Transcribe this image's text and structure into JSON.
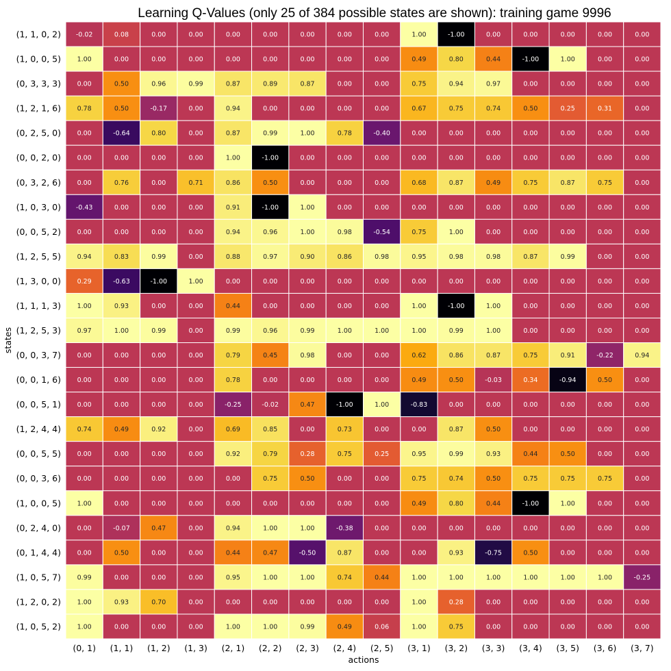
{
  "chart_data": {
    "type": "heatmap",
    "title": "Learning Q-Values (only 25 of 384 possible states are shown): training game 9996",
    "xlabel": "actions",
    "ylabel": "states",
    "colormap": "inferno",
    "vmin": -1.0,
    "vmax": 1.0,
    "value_format": "2 decimals",
    "grid": "white cell separators",
    "x_categories": [
      "(0, 1)",
      "(1, 1)",
      "(1, 2)",
      "(1, 3)",
      "(2, 1)",
      "(2, 2)",
      "(2, 3)",
      "(2, 4)",
      "(2, 5)",
      "(3, 1)",
      "(3, 2)",
      "(3, 3)",
      "(3, 4)",
      "(3, 5)",
      "(3, 6)",
      "(3, 7)"
    ],
    "y_categories": [
      "(1, 1, 0, 2)",
      "(1, 0, 0, 5)",
      "(0, 3, 3, 3)",
      "(1, 2, 1, 6)",
      "(0, 2, 5, 0)",
      "(0, 0, 2, 0)",
      "(0, 3, 2, 6)",
      "(1, 0, 3, 0)",
      "(0, 0, 5, 2)",
      "(1, 2, 5, 5)",
      "(1, 3, 0, 0)",
      "(1, 1, 1, 3)",
      "(1, 2, 5, 3)",
      "(0, 0, 3, 7)",
      "(0, 0, 1, 6)",
      "(0, 0, 5, 1)",
      "(1, 2, 4, 4)",
      "(0, 0, 5, 5)",
      "(0, 0, 3, 6)",
      "(1, 0, 0, 5)",
      "(0, 2, 4, 0)",
      "(0, 1, 4, 4)",
      "(1, 0, 5, 7)",
      "(1, 2, 0, 2)",
      "(1, 0, 5, 2)"
    ],
    "values": [
      [
        -0.02,
        0.08,
        0.0,
        0.0,
        0.0,
        0.0,
        0.0,
        0.0,
        0.0,
        1.0,
        -1.0,
        0.0,
        0.0,
        0.0,
        0.0,
        0.0
      ],
      [
        1.0,
        0.0,
        0.0,
        0.0,
        0.0,
        0.0,
        0.0,
        0.0,
        0.0,
        0.49,
        0.8,
        0.44,
        -1.0,
        1.0,
        0.0,
        0.0
      ],
      [
        0.0,
        0.5,
        0.96,
        0.99,
        0.87,
        0.89,
        0.87,
        0.0,
        0.0,
        0.75,
        0.94,
        0.97,
        0.0,
        0.0,
        0.0,
        0.0
      ],
      [
        0.78,
        0.5,
        -0.17,
        0.0,
        0.94,
        0.0,
        0.0,
        0.0,
        0.0,
        0.67,
        0.75,
        0.74,
        0.5,
        0.25,
        0.31,
        0.0
      ],
      [
        0.0,
        -0.64,
        0.8,
        0.0,
        0.87,
        0.99,
        1.0,
        0.78,
        -0.4,
        0.0,
        0.0,
        0.0,
        0.0,
        0.0,
        0.0,
        0.0
      ],
      [
        0.0,
        0.0,
        0.0,
        0.0,
        1.0,
        -1.0,
        0.0,
        0.0,
        0.0,
        0.0,
        0.0,
        0.0,
        0.0,
        0.0,
        0.0,
        0.0
      ],
      [
        0.0,
        0.76,
        0.0,
        0.71,
        0.86,
        0.5,
        0.0,
        0.0,
        0.0,
        0.68,
        0.87,
        0.49,
        0.75,
        0.87,
        0.75,
        0.0
      ],
      [
        -0.43,
        0.0,
        0.0,
        0.0,
        0.91,
        -1.0,
        1.0,
        0.0,
        0.0,
        0.0,
        0.0,
        0.0,
        0.0,
        0.0,
        0.0,
        0.0
      ],
      [
        0.0,
        0.0,
        0.0,
        0.0,
        0.94,
        0.96,
        1.0,
        0.98,
        -0.54,
        0.75,
        1.0,
        0.0,
        0.0,
        0.0,
        0.0,
        0.0
      ],
      [
        0.94,
        0.83,
        0.99,
        0.0,
        0.88,
        0.97,
        0.9,
        0.86,
        0.98,
        0.95,
        0.98,
        0.98,
        0.87,
        0.99,
        0.0,
        0.0
      ],
      [
        0.29,
        -0.63,
        -1.0,
        1.0,
        0.0,
        0.0,
        0.0,
        0.0,
        0.0,
        0.0,
        0.0,
        0.0,
        0.0,
        0.0,
        0.0,
        0.0
      ],
      [
        1.0,
        0.93,
        0.0,
        0.0,
        0.44,
        0.0,
        0.0,
        0.0,
        0.0,
        1.0,
        -1.0,
        1.0,
        0.0,
        0.0,
        0.0,
        0.0
      ],
      [
        0.97,
        1.0,
        0.99,
        0.0,
        0.99,
        0.96,
        0.99,
        1.0,
        1.0,
        1.0,
        0.99,
        1.0,
        0.0,
        0.0,
        0.0,
        0.0
      ],
      [
        0.0,
        0.0,
        0.0,
        0.0,
        0.79,
        0.45,
        0.98,
        0.0,
        0.0,
        0.62,
        0.86,
        0.87,
        0.75,
        0.91,
        -0.22,
        0.94
      ],
      [
        0.0,
        0.0,
        0.0,
        0.0,
        0.78,
        0.0,
        0.0,
        0.0,
        0.0,
        0.49,
        0.5,
        -0.03,
        0.34,
        -0.94,
        0.5,
        0.0
      ],
      [
        0.0,
        0.0,
        0.0,
        0.0,
        -0.25,
        -0.02,
        0.47,
        -1.0,
        1.0,
        -0.83,
        0.0,
        0.0,
        0.0,
        0.0,
        0.0,
        0.0
      ],
      [
        0.74,
        0.49,
        0.92,
        0.0,
        0.69,
        0.85,
        0.0,
        0.73,
        0.0,
        0.0,
        0.87,
        0.5,
        0.0,
        0.0,
        0.0,
        0.0
      ],
      [
        0.0,
        0.0,
        0.0,
        0.0,
        0.92,
        0.79,
        0.28,
        0.75,
        0.25,
        0.95,
        0.99,
        0.93,
        0.44,
        0.5,
        0.0,
        0.0
      ],
      [
        0.0,
        0.0,
        0.0,
        0.0,
        0.0,
        0.75,
        0.5,
        0.0,
        0.0,
        0.75,
        0.74,
        0.5,
        0.75,
        0.75,
        0.75,
        0.0
      ],
      [
        1.0,
        0.0,
        0.0,
        0.0,
        0.0,
        0.0,
        0.0,
        0.0,
        0.0,
        0.49,
        0.8,
        0.44,
        -1.0,
        1.0,
        0.0,
        0.0
      ],
      [
        0.0,
        -0.07,
        0.47,
        0.0,
        0.94,
        1.0,
        1.0,
        -0.38,
        0.0,
        0.0,
        0.0,
        0.0,
        0.0,
        0.0,
        0.0,
        0.0
      ],
      [
        0.0,
        0.5,
        0.0,
        0.0,
        0.44,
        0.47,
        -0.5,
        0.87,
        0.0,
        0.0,
        0.93,
        -0.75,
        0.5,
        0.0,
        0.0,
        0.0
      ],
      [
        0.99,
        0.0,
        0.0,
        0.0,
        0.95,
        1.0,
        1.0,
        0.74,
        0.44,
        1.0,
        1.0,
        1.0,
        1.0,
        1.0,
        1.0,
        -0.25
      ],
      [
        1.0,
        0.93,
        0.7,
        0.0,
        0.0,
        0.0,
        0.0,
        0.0,
        0.0,
        1.0,
        0.28,
        0.0,
        0.0,
        0.0,
        0.0,
        0.0
      ],
      [
        1.0,
        0.0,
        0.0,
        0.0,
        1.0,
        1.0,
        0.99,
        0.49,
        0.06,
        1.0,
        0.75,
        0.0,
        0.0,
        0.0,
        0.0,
        0.0
      ]
    ]
  }
}
